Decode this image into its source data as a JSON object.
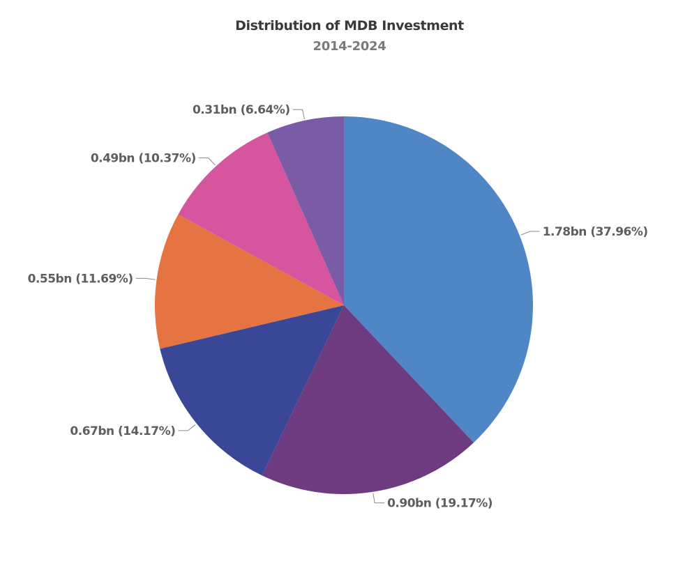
{
  "chart_data": {
    "type": "pie",
    "title": "Distribution of MDB Investment",
    "subtitle": "2014-2024",
    "slices": [
      {
        "value": 1.78,
        "percent": 37.96,
        "label": "1.78bn (37.96%)",
        "color": "#4f86c6"
      },
      {
        "value": 0.9,
        "percent": 19.17,
        "label": "0.90bn (19.17%)",
        "color": "#6e3a80"
      },
      {
        "value": 0.67,
        "percent": 14.17,
        "label": "0.67bn (14.17%)",
        "color": "#394796"
      },
      {
        "value": 0.55,
        "percent": 11.69,
        "label": "0.55bn (11.69%)",
        "color": "#e57442"
      },
      {
        "value": 0.49,
        "percent": 10.37,
        "label": "0.49bn (10.37%)",
        "color": "#d6559f"
      },
      {
        "value": 0.31,
        "percent": 6.64,
        "label": "0.31bn (6.64%)",
        "color": "#7a5ca6"
      }
    ],
    "start_angle": "12 o'clock",
    "direction": "clockwise",
    "legend": "none"
  }
}
